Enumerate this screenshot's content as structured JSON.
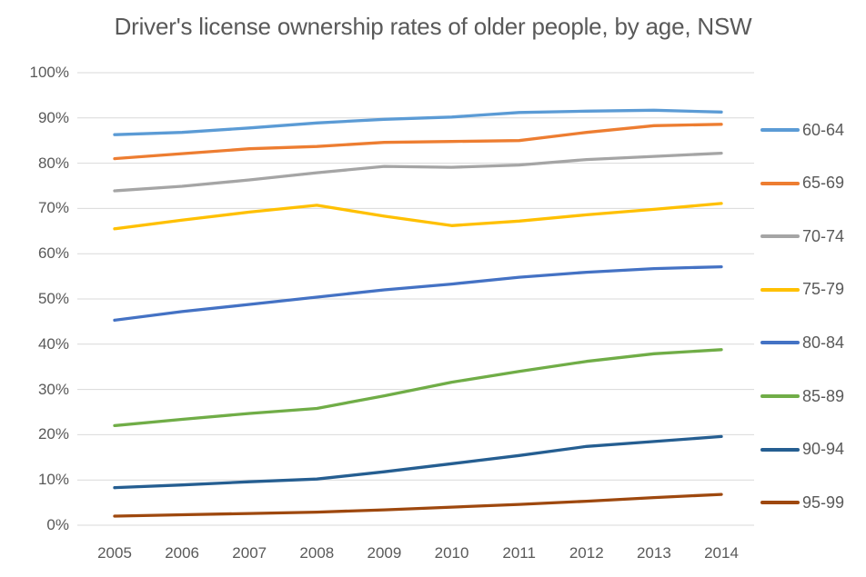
{
  "chart_data": {
    "type": "line",
    "title": "Driver's license ownership rates of older people, by age, NSW",
    "xlabel": "",
    "ylabel": "",
    "x_categories": [
      "2005",
      "2006",
      "2007",
      "2008",
      "2009",
      "2010",
      "2011",
      "2012",
      "2013",
      "2014"
    ],
    "y_ticks": [
      "100%",
      "90%",
      "80%",
      "70%",
      "60%",
      "50%",
      "40%",
      "30%",
      "20%",
      "10%",
      "0%"
    ],
    "ylim": [
      0,
      100
    ],
    "grid": "horizontal",
    "legend_position": "right",
    "series": [
      {
        "name": "60-64",
        "color": "#5B9BD5",
        "values": [
          86.3,
          86.8,
          87.8,
          88.9,
          89.7,
          90.2,
          91.2,
          91.5,
          91.7,
          91.3
        ]
      },
      {
        "name": "65-69",
        "color": "#ED7D31",
        "values": [
          81.0,
          82.1,
          83.2,
          83.7,
          84.6,
          84.8,
          85.0,
          86.8,
          88.3,
          88.6
        ]
      },
      {
        "name": "70-74",
        "color": "#A5A5A5",
        "values": [
          73.9,
          74.9,
          76.3,
          77.9,
          79.3,
          79.1,
          79.6,
          80.8,
          81.5,
          82.2
        ]
      },
      {
        "name": "75-79",
        "color": "#FFC000",
        "values": [
          65.5,
          67.4,
          69.2,
          70.7,
          68.3,
          66.2,
          67.2,
          68.6,
          69.8,
          71.1
        ]
      },
      {
        "name": "80-84",
        "color": "#4472C4",
        "values": [
          45.3,
          47.2,
          48.8,
          50.4,
          52.0,
          53.3,
          54.8,
          55.9,
          56.7,
          57.1
        ]
      },
      {
        "name": "85-89",
        "color": "#70AD47",
        "values": [
          22.0,
          23.4,
          24.7,
          25.8,
          28.6,
          31.6,
          34.0,
          36.2,
          37.9,
          38.8
        ]
      },
      {
        "name": "90-94",
        "color": "#255E91",
        "values": [
          8.3,
          8.9,
          9.6,
          10.2,
          11.8,
          13.6,
          15.4,
          17.4,
          18.5,
          19.6
        ]
      },
      {
        "name": "95-99",
        "color": "#9E480E",
        "values": [
          2.0,
          2.3,
          2.6,
          2.9,
          3.4,
          4.0,
          4.6,
          5.3,
          6.1,
          6.8
        ]
      }
    ]
  },
  "colors": {
    "background": "#FFFFFF",
    "gridline": "#D9D9D9",
    "title_text": "#595959",
    "axis_text": "#595959"
  }
}
